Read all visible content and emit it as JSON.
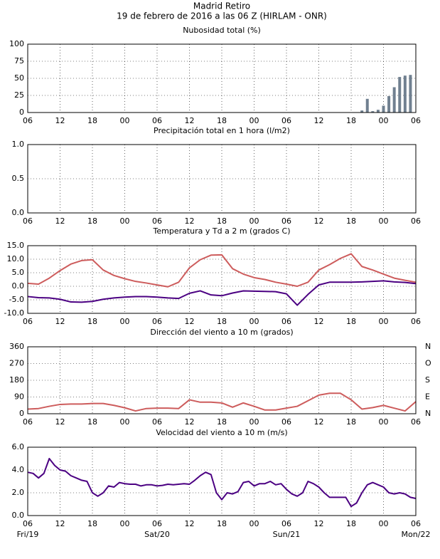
{
  "header": {
    "title": "Madrid Retiro",
    "subtitle": "19 de febrero de 2016 a las 06 Z (HIRLAM - ONR)"
  },
  "chart_data": [
    {
      "type": "bar",
      "title": "Nubosidad total (%)",
      "color": "#708090",
      "x": [
        62,
        63,
        64,
        65,
        66,
        67,
        68,
        69,
        70,
        71
      ],
      "values": [
        3,
        20,
        2,
        4,
        10,
        24,
        37,
        52,
        54,
        55
      ],
      "xlim": [
        0,
        72
      ],
      "ylim": [
        0,
        100
      ],
      "yticks": [
        0,
        25,
        50,
        75,
        100
      ],
      "grid": true,
      "xticks": [
        {
          "value": 0,
          "label": "06"
        },
        {
          "value": 6,
          "label": "12"
        },
        {
          "value": 12,
          "label": "18"
        },
        {
          "value": 18,
          "label": "00"
        },
        {
          "value": 24,
          "label": "06"
        },
        {
          "value": 30,
          "label": "12"
        },
        {
          "value": 36,
          "label": "18"
        },
        {
          "value": 42,
          "label": "00"
        },
        {
          "value": 48,
          "label": "06"
        },
        {
          "value": 54,
          "label": "12"
        },
        {
          "value": 60,
          "label": "18"
        },
        {
          "value": 66,
          "label": "00"
        },
        {
          "value": 72,
          "label": "06"
        }
      ]
    },
    {
      "type": "bar",
      "title": "Precipitación total en 1 hora (l/m2)",
      "color": "#708090",
      "x": [],
      "values": [],
      "xlim": [
        0,
        72
      ],
      "ylim": [
        0,
        1
      ],
      "yticks": [
        {
          "value": 0,
          "label": "0.0"
        },
        {
          "value": 0.5,
          "label": "0.5"
        },
        {
          "value": 1,
          "label": "1.0"
        }
      ],
      "grid": true,
      "xticks": [
        {
          "value": 0,
          "label": "06"
        },
        {
          "value": 6,
          "label": "12"
        },
        {
          "value": 12,
          "label": "18"
        },
        {
          "value": 18,
          "label": "00"
        },
        {
          "value": 24,
          "label": "06"
        },
        {
          "value": 30,
          "label": "12"
        },
        {
          "value": 36,
          "label": "18"
        },
        {
          "value": 42,
          "label": "00"
        },
        {
          "value": 48,
          "label": "06"
        },
        {
          "value": 54,
          "label": "12"
        },
        {
          "value": 60,
          "label": "18"
        },
        {
          "value": 66,
          "label": "00"
        },
        {
          "value": 72,
          "label": "06"
        }
      ]
    },
    {
      "type": "line",
      "title": "Temperatura y Td a 2 m (grados C)",
      "x": [
        0,
        2,
        4,
        6,
        8,
        10,
        12,
        14,
        16,
        18,
        20,
        22,
        24,
        26,
        28,
        30,
        32,
        34,
        36,
        38,
        40,
        42,
        44,
        46,
        48,
        50,
        52,
        54,
        56,
        58,
        60,
        62,
        64,
        66,
        68,
        70,
        72
      ],
      "series": [
        {
          "color": "#cd5c5c",
          "values": [
            1.1,
            0.8,
            3.0,
            5.8,
            8.2,
            9.5,
            9.8,
            6.0,
            4.0,
            2.8,
            1.8,
            1.2,
            0.5,
            -0.2,
            1.5,
            6.8,
            9.8,
            11.5,
            11.6,
            6.5,
            4.5,
            3.2,
            2.5,
            1.5,
            0.8,
            0.0,
            1.5,
            6.0,
            8.0,
            10.3,
            12.0,
            7.3,
            6.0,
            4.5,
            3.0,
            2.2,
            1.5
          ]
        },
        {
          "color": "#4b0082",
          "values": [
            -3.8,
            -4.2,
            -4.3,
            -4.8,
            -5.8,
            -5.9,
            -5.6,
            -4.8,
            -4.3,
            -4.0,
            -3.8,
            -3.8,
            -4.0,
            -4.3,
            -4.5,
            -2.6,
            -1.7,
            -3.2,
            -3.5,
            -2.5,
            -1.7,
            -1.8,
            -1.9,
            -2.0,
            -2.8,
            -7.0,
            -3.0,
            0.5,
            1.5,
            1.5,
            1.5,
            1.6,
            1.8,
            2.0,
            1.6,
            1.4,
            1.0
          ]
        }
      ],
      "xlim": [
        0,
        72
      ],
      "ylim": [
        -10,
        15
      ],
      "grid": true,
      "yticks": [
        {
          "value": -10,
          "label": "-10.0"
        },
        {
          "value": -5,
          "label": "-5.0"
        },
        {
          "value": 0,
          "label": "0.0"
        },
        {
          "value": 5,
          "label": "5.0"
        },
        {
          "value": 10,
          "label": "10.0"
        },
        {
          "value": 15,
          "label": "15.0"
        }
      ],
      "xticks": [
        {
          "value": 0,
          "label": "06"
        },
        {
          "value": 6,
          "label": "12"
        },
        {
          "value": 12,
          "label": "18"
        },
        {
          "value": 18,
          "label": "00"
        },
        {
          "value": 24,
          "label": "06"
        },
        {
          "value": 30,
          "label": "12"
        },
        {
          "value": 36,
          "label": "18"
        },
        {
          "value": 42,
          "label": "00"
        },
        {
          "value": 48,
          "label": "06"
        },
        {
          "value": 54,
          "label": "12"
        },
        {
          "value": 60,
          "label": "18"
        },
        {
          "value": 66,
          "label": "00"
        },
        {
          "value": 72,
          "label": "06"
        }
      ]
    },
    {
      "type": "line",
      "title": "Dirección del viento a 10 m (grados)",
      "x": [
        0,
        2,
        4,
        6,
        8,
        10,
        12,
        14,
        16,
        18,
        20,
        22,
        24,
        26,
        28,
        30,
        32,
        34,
        36,
        38,
        40,
        42,
        44,
        46,
        48,
        50,
        52,
        54,
        56,
        58,
        60,
        62,
        64,
        66,
        68,
        70,
        72
      ],
      "series": [
        {
          "color": "#cd5c5c",
          "values": [
            25,
            28,
            40,
            50,
            52,
            52,
            55,
            55,
            45,
            32,
            15,
            28,
            30,
            30,
            28,
            75,
            62,
            62,
            58,
            35,
            58,
            40,
            20,
            20,
            30,
            40,
            70,
            100,
            110,
            110,
            75,
            25,
            33,
            45,
            30,
            15,
            65
          ]
        }
      ],
      "xlim": [
        0,
        72
      ],
      "ylim": [
        0,
        360
      ],
      "yticks": [
        0,
        90,
        180,
        270,
        360
      ],
      "grid": true,
      "y2lim": [
        0,
        360
      ],
      "y2ticks": [
        {
          "value": 360,
          "label": "N"
        },
        {
          "value": 270,
          "label": "O"
        },
        {
          "value": 180,
          "label": "S"
        },
        {
          "value": 90,
          "label": "E"
        },
        {
          "value": 0,
          "label": "N"
        }
      ],
      "xticks": [
        {
          "value": 0,
          "label": "06"
        },
        {
          "value": 6,
          "label": "12"
        },
        {
          "value": 12,
          "label": "18"
        },
        {
          "value": 18,
          "label": "00"
        },
        {
          "value": 24,
          "label": "06"
        },
        {
          "value": 30,
          "label": "12"
        },
        {
          "value": 36,
          "label": "18"
        },
        {
          "value": 42,
          "label": "00"
        },
        {
          "value": 48,
          "label": "06"
        },
        {
          "value": 54,
          "label": "12"
        },
        {
          "value": 60,
          "label": "18"
        },
        {
          "value": 66,
          "label": "00"
        },
        {
          "value": 72,
          "label": "06"
        }
      ]
    },
    {
      "type": "line",
      "title": "Velocidad del viento a 10 m (m/s)",
      "x": [
        0,
        1,
        2,
        3,
        4,
        5,
        6,
        7,
        8,
        9,
        10,
        11,
        12,
        13,
        14,
        15,
        16,
        17,
        18,
        19,
        20,
        21,
        22,
        23,
        24,
        25,
        26,
        27,
        28,
        29,
        30,
        31,
        32,
        33,
        34,
        35,
        36,
        37,
        38,
        39,
        40,
        41,
        42,
        43,
        44,
        45,
        46,
        47,
        48,
        49,
        50,
        51,
        52,
        53,
        54,
        55,
        56,
        57,
        58,
        59,
        60,
        61,
        62,
        63,
        64,
        65,
        66,
        67,
        68,
        69,
        70,
        71,
        72
      ],
      "series": [
        {
          "color": "#4b0082",
          "values": [
            3.8,
            3.7,
            3.3,
            3.7,
            5.0,
            4.4,
            4.0,
            3.9,
            3.5,
            3.3,
            3.1,
            3.0,
            2.0,
            1.7,
            2.0,
            2.6,
            2.5,
            2.9,
            2.8,
            2.75,
            2.75,
            2.6,
            2.7,
            2.7,
            2.6,
            2.65,
            2.75,
            2.7,
            2.75,
            2.8,
            2.75,
            3.1,
            3.5,
            3.8,
            3.6,
            2.0,
            1.4,
            2.0,
            1.9,
            2.1,
            2.9,
            3.0,
            2.6,
            2.8,
            2.8,
            3.0,
            2.7,
            2.8,
            2.3,
            1.9,
            1.7,
            2.0,
            3.0,
            2.8,
            2.5,
            2.0,
            1.6,
            1.6,
            1.6,
            1.6,
            0.8,
            1.1,
            2.0,
            2.7,
            2.9,
            2.7,
            2.5,
            2.0,
            1.9,
            2.0,
            1.9,
            1.6,
            1.5
          ]
        }
      ],
      "xlim": [
        0,
        72
      ],
      "ylim": [
        0,
        6
      ],
      "grid": true,
      "yticks": [
        {
          "value": 0,
          "label": "0.0"
        },
        {
          "value": 2,
          "label": "2.0"
        },
        {
          "value": 4,
          "label": "4.0"
        },
        {
          "value": 6,
          "label": "6.0"
        }
      ],
      "xticks": [
        {
          "value": 0,
          "label": "06"
        },
        {
          "value": 6,
          "label": "12"
        },
        {
          "value": 12,
          "label": "18"
        },
        {
          "value": 18,
          "label": "00"
        },
        {
          "value": 24,
          "label": "06"
        },
        {
          "value": 30,
          "label": "12"
        },
        {
          "value": 36,
          "label": "18"
        },
        {
          "value": 42,
          "label": "00"
        },
        {
          "value": 48,
          "label": "06"
        },
        {
          "value": 54,
          "label": "12"
        },
        {
          "value": 60,
          "label": "18"
        },
        {
          "value": 66,
          "label": "00"
        },
        {
          "value": 72,
          "label": "06"
        }
      ],
      "day_labels": [
        {
          "value": 0,
          "label": "Fri/19"
        },
        {
          "value": 24,
          "label": "Sat/20"
        },
        {
          "value": 48,
          "label": "Sun/21"
        },
        {
          "value": 72,
          "label": "Mon/22"
        }
      ]
    }
  ]
}
